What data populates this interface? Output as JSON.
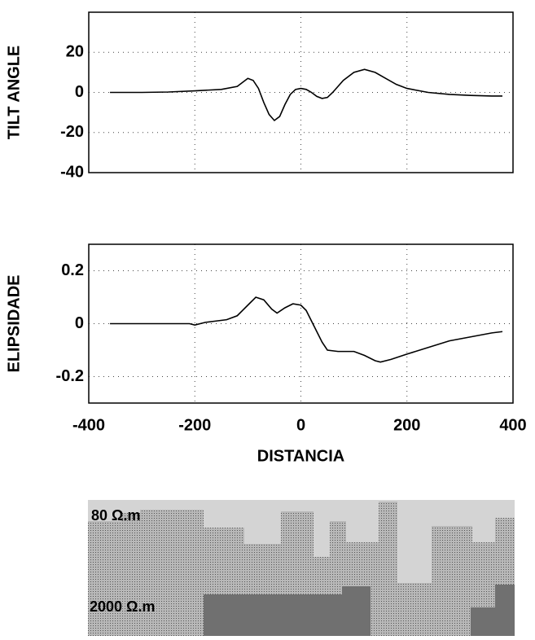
{
  "chart_data": [
    {
      "type": "line",
      "ylabel": "TILT ANGLE",
      "x": [
        -360,
        -300,
        -250,
        -200,
        -150,
        -120,
        -100,
        -90,
        -80,
        -70,
        -60,
        -50,
        -40,
        -30,
        -20,
        -10,
        0,
        10,
        20,
        30,
        40,
        50,
        60,
        80,
        100,
        120,
        140,
        160,
        180,
        200,
        240,
        280,
        320,
        360,
        380
      ],
      "series": [
        {
          "color": "#000000",
          "values": [
            0,
            0,
            0.2,
            0.8,
            1.5,
            3,
            7,
            6,
            2,
            -5,
            -11,
            -14,
            -12,
            -6,
            -1,
            1.5,
            2,
            1.5,
            0,
            -2,
            -3,
            -2.5,
            0,
            6,
            10,
            11.5,
            10,
            7,
            4,
            2,
            0,
            -1,
            -1.5,
            -1.8,
            -1.8
          ]
        }
      ],
      "xlim": [
        -400,
        400
      ],
      "xticks": [
        -400,
        -200,
        0,
        200,
        400
      ],
      "ylim": [
        -40,
        40
      ],
      "yticks": [
        -40,
        -20,
        0,
        20
      ],
      "grid": true
    },
    {
      "type": "line",
      "ylabel": "ELIPSIDADE",
      "xlabel": "DISTANCIA",
      "x": [
        -360,
        -250,
        -210,
        -200,
        -180,
        -160,
        -140,
        -120,
        -100,
        -85,
        -70,
        -55,
        -45,
        -30,
        -15,
        0,
        10,
        20,
        30,
        40,
        50,
        70,
        100,
        120,
        140,
        150,
        170,
        200,
        240,
        280,
        320,
        360,
        380
      ],
      "series": [
        {
          "color": "#000000",
          "values": [
            0,
            0,
            0,
            -0.005,
            0.005,
            0.01,
            0.015,
            0.03,
            0.07,
            0.1,
            0.09,
            0.055,
            0.04,
            0.06,
            0.075,
            0.07,
            0.05,
            0.01,
            -0.03,
            -0.07,
            -0.1,
            -0.105,
            -0.105,
            -0.12,
            -0.14,
            -0.145,
            -0.135,
            -0.115,
            -0.09,
            -0.065,
            -0.05,
            -0.035,
            -0.03
          ]
        }
      ],
      "xlim": [
        -400,
        400
      ],
      "xticks": [
        -400,
        -200,
        0,
        200,
        400
      ],
      "ylim": [
        -0.3,
        0.3
      ],
      "yticks": [
        -0.2,
        0,
        0.2
      ],
      "grid": true
    }
  ],
  "model": {
    "labels": [
      "80 Ω.m",
      "2000 Ω.m"
    ]
  }
}
